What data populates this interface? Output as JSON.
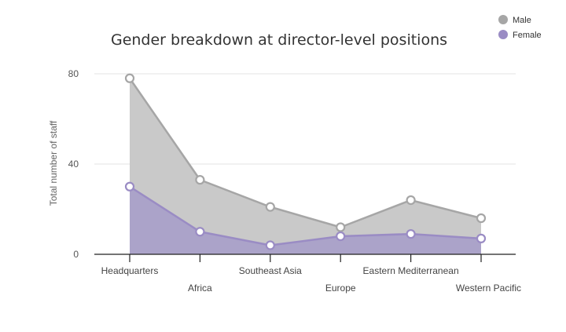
{
  "chart_data": {
    "type": "area",
    "title": "Gender breakdown at director-level positions",
    "xlabel": "",
    "ylabel": "Total number of staff",
    "categories": [
      "Headquarters",
      "Africa",
      "Southeast Asia",
      "Europe",
      "Eastern Mediterranean",
      "Western Pacific"
    ],
    "series": [
      {
        "name": "Male",
        "values": [
          78,
          33,
          21,
          12,
          24,
          16
        ],
        "color": "#a6a6a6",
        "fill": "#c9c9c9"
      },
      {
        "name": "Female",
        "values": [
          30,
          10,
          4,
          8,
          9,
          7
        ],
        "color": "#9a8cc4",
        "fill": "#aba3c9"
      }
    ],
    "ylim": [
      0,
      80
    ],
    "yticks": [
      0,
      40,
      80
    ],
    "grid": true,
    "legend_position": "top-right"
  }
}
